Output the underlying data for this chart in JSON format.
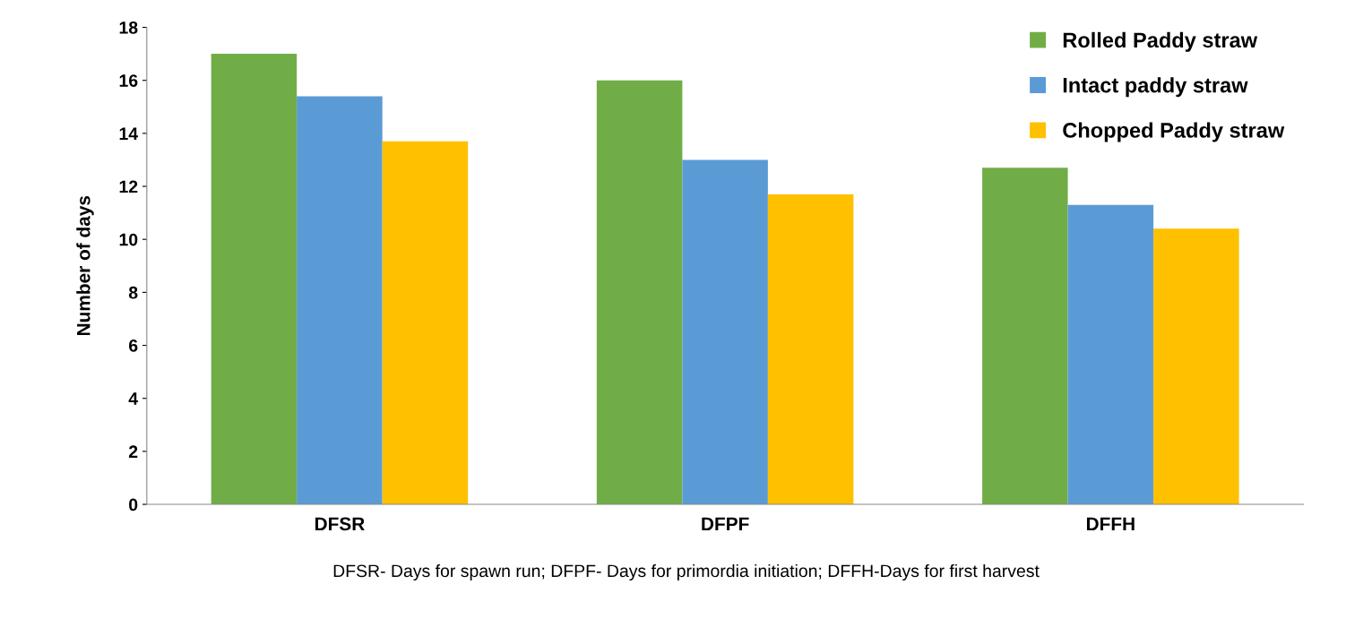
{
  "chart_data": {
    "type": "bar",
    "ylabel": "Number of days",
    "categories": [
      "DFSR",
      "DFPF",
      "DFFH"
    ],
    "series": [
      {
        "name": "Rolled Paddy straw",
        "color": "#70ad47",
        "values": [
          17.0,
          16.0,
          12.7
        ]
      },
      {
        "name": "Intact paddy straw",
        "color": "#5b9bd5",
        "values": [
          15.4,
          13.0,
          11.3
        ]
      },
      {
        "name": "Chopped Paddy straw",
        "color": "#ffc000",
        "values": [
          13.7,
          11.7,
          10.4
        ]
      }
    ],
    "ylim": [
      0,
      18
    ],
    "yticks": [
      0,
      2,
      4,
      6,
      8,
      10,
      12,
      14,
      16,
      18
    ],
    "grid": false,
    "legend": "top right",
    "annotations": [
      "DFSR- Days for spawn run; DFPF- Days for primordia initiation; DFFH-Days for first harvest"
    ]
  }
}
